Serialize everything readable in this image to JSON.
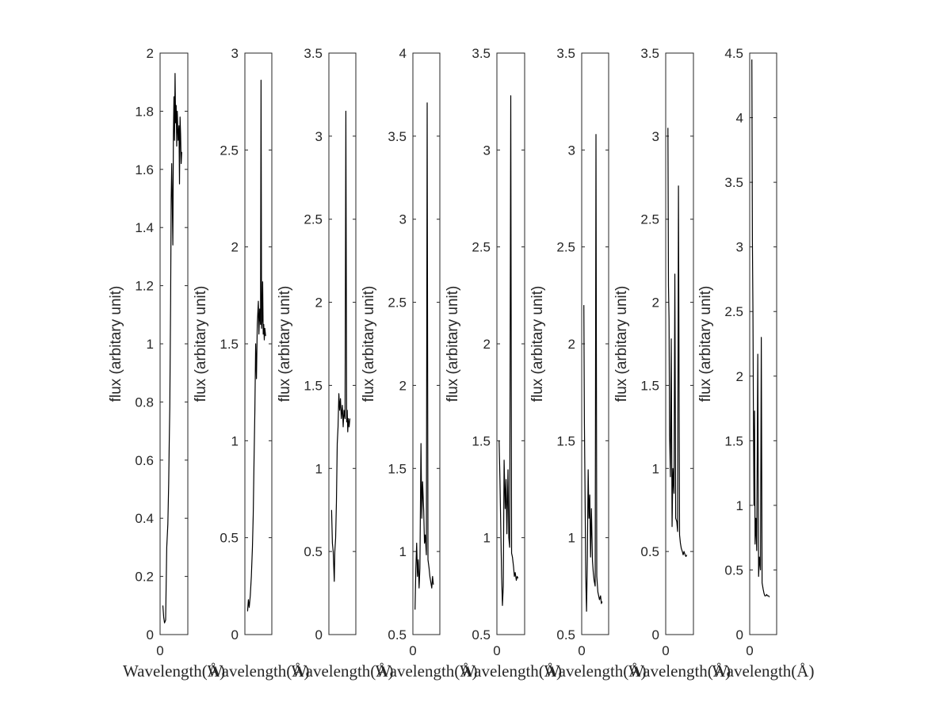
{
  "chart_data": [
    {
      "type": "line",
      "xlabel": "Wavelength($\\mathring{A}$)",
      "ylabel": "flux (arbitary unit)",
      "xlim": [
        0,
        1
      ],
      "ylim": [
        0,
        2
      ],
      "xticks": [
        0
      ],
      "yticks": [
        0,
        0.2,
        0.4,
        0.6,
        0.8,
        1,
        1.2,
        1.4,
        1.6,
        1.8,
        2
      ],
      "ytick_labels": [
        "0",
        "0.2",
        "0.4",
        "0.6",
        "0.8",
        "1",
        "1.2",
        "1.4",
        "1.6",
        "1.8",
        "2"
      ],
      "series": [
        {
          "x": [
            0.1,
            0.13,
            0.16,
            0.2,
            0.24,
            0.28,
            0.31,
            0.33,
            0.35,
            0.38,
            0.4,
            0.42,
            0.44,
            0.46,
            0.48,
            0.5,
            0.52,
            0.54,
            0.56,
            0.58,
            0.6,
            0.62,
            0.65,
            0.68,
            0.7,
            0.72,
            0.74,
            0.76,
            0.78
          ],
          "y": [
            0.1,
            0.06,
            0.04,
            0.05,
            0.3,
            0.38,
            0.52,
            0.66,
            0.78,
            1.15,
            1.5,
            1.62,
            1.48,
            1.34,
            1.72,
            1.85,
            1.7,
            1.93,
            1.76,
            1.82,
            1.68,
            1.8,
            1.7,
            1.75,
            1.55,
            1.78,
            1.72,
            1.62,
            1.66
          ]
        }
      ]
    },
    {
      "type": "line",
      "xlabel": "Wavelength($\\mathring{A}$)",
      "ylabel": "flux (arbitary unit)",
      "xlim": [
        0,
        1
      ],
      "ylim": [
        0,
        3
      ],
      "xticks": [],
      "yticks": [
        0,
        0.5,
        1,
        1.5,
        2,
        2.5,
        3
      ],
      "ytick_labels": [
        "0",
        "0.5",
        "1",
        "1.5",
        "2",
        "2.5",
        "3"
      ],
      "series": [
        {
          "x": [
            0.1,
            0.13,
            0.16,
            0.2,
            0.24,
            0.28,
            0.31,
            0.34,
            0.37,
            0.4,
            0.43,
            0.46,
            0.5,
            0.52,
            0.55,
            0.58,
            0.6,
            0.62,
            0.64,
            0.66,
            0.68,
            0.7,
            0.72,
            0.74,
            0.77
          ],
          "y": [
            0.12,
            0.18,
            0.14,
            0.2,
            0.3,
            0.45,
            0.62,
            0.9,
            1.15,
            1.5,
            1.32,
            1.6,
            1.72,
            1.55,
            1.68,
            1.6,
            2.86,
            1.58,
            1.62,
            1.82,
            1.55,
            1.6,
            1.52,
            1.58,
            1.54
          ]
        }
      ]
    },
    {
      "type": "line",
      "xlabel": "Wavelength($\\mathring{A}$)",
      "ylabel": "flux (arbitary unit)",
      "xlim": [
        0,
        1
      ],
      "ylim": [
        0,
        3.5
      ],
      "xticks": [],
      "yticks": [
        0,
        0.5,
        1,
        1.5,
        2,
        2.5,
        3,
        3.5
      ],
      "ytick_labels": [
        "0",
        "0.5",
        "1",
        "1.5",
        "2",
        "2.5",
        "3",
        "3.5"
      ],
      "series": [
        {
          "x": [
            0.1,
            0.13,
            0.16,
            0.2,
            0.22,
            0.25,
            0.28,
            0.31,
            0.34,
            0.37,
            0.4,
            0.43,
            0.46,
            0.5,
            0.53,
            0.56,
            0.6,
            0.63,
            0.66,
            0.68,
            0.7,
            0.72,
            0.75,
            0.78
          ],
          "y": [
            0.75,
            0.55,
            0.5,
            0.32,
            0.5,
            0.58,
            0.8,
            1.15,
            1.25,
            1.45,
            1.35,
            1.42,
            1.3,
            1.38,
            1.25,
            1.35,
            1.3,
            3.15,
            1.28,
            1.35,
            1.22,
            1.3,
            1.25,
            1.3
          ]
        }
      ]
    },
    {
      "type": "line",
      "xlabel": "Wavelength($\\mathring{A}$)",
      "ylabel": "flux (arbitary unit)",
      "xlim": [
        0,
        1
      ],
      "ylim": [
        0.5,
        4
      ],
      "xticks": [
        0
      ],
      "yticks": [
        0.5,
        1,
        1.5,
        2,
        2.5,
        3,
        3.5,
        4
      ],
      "ytick_labels": [
        "0.5",
        "1",
        "1.5",
        "2",
        "2.5",
        "3",
        "3.5",
        "4"
      ],
      "series": [
        {
          "x": [
            0.08,
            0.11,
            0.14,
            0.17,
            0.2,
            0.23,
            0.26,
            0.3,
            0.33,
            0.36,
            0.4,
            0.43,
            0.46,
            0.5,
            0.53,
            0.56,
            0.6,
            0.63,
            0.66,
            0.7,
            0.73,
            0.76
          ],
          "y": [
            0.65,
            0.9,
            1.05,
            0.85,
            0.95,
            0.78,
            0.9,
            1.65,
            1.2,
            1.42,
            1.25,
            1.05,
            1.1,
            0.98,
            3.7,
            0.95,
            0.9,
            0.85,
            0.82,
            0.78,
            0.85,
            0.8
          ]
        }
      ]
    },
    {
      "type": "line",
      "xlabel": "Wavelength($\\mathring{A}$)",
      "ylabel": "flux (arbitary unit)",
      "xlim": [
        0,
        1
      ],
      "ylim": [
        0.5,
        3.5
      ],
      "xticks": [
        0
      ],
      "yticks": [
        0.5,
        1,
        1.5,
        2,
        2.5,
        3,
        3.5
      ],
      "ytick_labels": [
        "0.5",
        "1",
        "1.5",
        "2",
        "2.5",
        "3",
        "3.5"
      ],
      "series": [
        {
          "x": [
            0.08,
            0.11,
            0.14,
            0.17,
            0.2,
            0.23,
            0.26,
            0.3,
            0.33,
            0.36,
            0.4,
            0.43,
            0.46,
            0.5,
            0.53,
            0.56,
            0.6,
            0.63,
            0.66,
            0.7,
            0.73,
            0.76
          ],
          "y": [
            1.5,
            1.3,
            1.05,
            0.8,
            0.65,
            0.75,
            1.4,
            1.15,
            1.3,
            1.02,
            1.35,
            1.0,
            0.95,
            3.28,
            0.92,
            0.9,
            0.85,
            0.8,
            0.82,
            0.78,
            0.8,
            0.79
          ]
        }
      ]
    },
    {
      "type": "line",
      "xlabel": "Wavelength($\\mathring{A}$)",
      "ylabel": "flux (arbitary unit)",
      "xlim": [
        0,
        1
      ],
      "ylim": [
        0.5,
        3.5
      ],
      "xticks": [
        0
      ],
      "yticks": [
        0.5,
        1,
        1.5,
        2,
        2.5,
        3,
        3.5
      ],
      "ytick_labels": [
        "0.5",
        "1",
        "1.5",
        "2",
        "2.5",
        "3",
        "3.5"
      ],
      "series": [
        {
          "x": [
            0.08,
            0.1,
            0.12,
            0.15,
            0.18,
            0.21,
            0.24,
            0.27,
            0.3,
            0.33,
            0.36,
            0.4,
            0.43,
            0.46,
            0.5,
            0.53,
            0.56,
            0.6,
            0.63,
            0.66,
            0.7,
            0.73,
            0.76
          ],
          "y": [
            2.2,
            1.6,
            1.3,
            0.8,
            0.62,
            0.9,
            1.35,
            1.1,
            1.22,
            0.9,
            1.15,
            0.88,
            0.82,
            0.78,
            0.75,
            3.08,
            0.8,
            0.72,
            0.7,
            0.68,
            0.7,
            0.66,
            0.67
          ]
        }
      ]
    },
    {
      "type": "line",
      "xlabel": "Wavelength($\\mathring{A}$)",
      "ylabel": "flux (arbitary unit)",
      "xlim": [
        0,
        1
      ],
      "ylim": [
        0,
        3.5
      ],
      "xticks": [
        0
      ],
      "yticks": [
        0,
        0.5,
        1,
        1.5,
        2,
        2.5,
        3,
        3.5
      ],
      "ytick_labels": [
        "0",
        "0.5",
        "1",
        "1.5",
        "2",
        "2.5",
        "3",
        "3.5"
      ],
      "series": [
        {
          "x": [
            0.08,
            0.1,
            0.12,
            0.14,
            0.17,
            0.2,
            0.23,
            0.26,
            0.3,
            0.33,
            0.36,
            0.4,
            0.43,
            0.46,
            0.5,
            0.53,
            0.56,
            0.6,
            0.63,
            0.66,
            0.7,
            0.73,
            0.76
          ],
          "y": [
            3.05,
            2.1,
            1.9,
            1.2,
            0.95,
            1.78,
            0.65,
            1.0,
            0.85,
            2.17,
            0.7,
            0.68,
            0.62,
            2.7,
            0.6,
            0.55,
            0.52,
            0.5,
            0.48,
            0.5,
            0.48,
            0.47,
            0.48
          ]
        }
      ]
    },
    {
      "type": "line",
      "xlabel": "Wavelength($\\mathring{A}$)",
      "ylabel": "flux (arbitary unit)",
      "xlim": [
        0,
        1
      ],
      "ylim": [
        0,
        4.5
      ],
      "xticks": [
        0
      ],
      "yticks": [
        0,
        0.5,
        1,
        1.5,
        2,
        2.5,
        3,
        3.5,
        4,
        4.5
      ],
      "ytick_labels": [
        "0",
        "0.5",
        "1",
        "1.5",
        "2",
        "2.5",
        "3",
        "3.5",
        "4",
        "4.5"
      ],
      "series": [
        {
          "x": [
            0.08,
            0.1,
            0.12,
            0.14,
            0.16,
            0.18,
            0.2,
            0.23,
            0.26,
            0.3,
            0.33,
            0.36,
            0.4,
            0.43,
            0.46,
            0.5,
            0.53,
            0.56,
            0.6,
            0.63,
            0.66,
            0.7,
            0.73
          ],
          "y": [
            4.45,
            3.05,
            2.5,
            1.6,
            1.0,
            1.73,
            0.7,
            0.9,
            0.65,
            2.17,
            0.45,
            0.6,
            0.5,
            2.3,
            0.4,
            0.35,
            0.32,
            0.3,
            0.3,
            0.31,
            0.3,
            0.3,
            0.29
          ]
        }
      ]
    }
  ]
}
